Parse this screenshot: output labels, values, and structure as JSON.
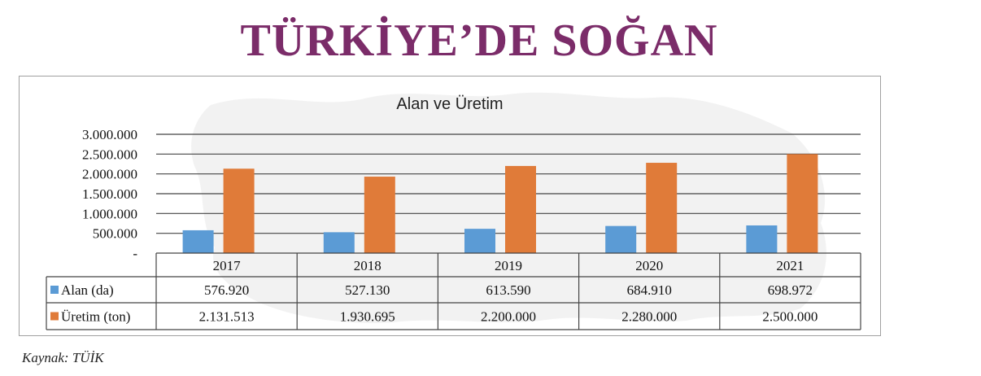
{
  "page": {
    "title": "TÜRKİYE’DE SOĞAN",
    "source": "Kaynak: TÜİK"
  },
  "colors": {
    "title": "#7b2c69",
    "alan": "#5b9bd5",
    "uretim": "#e07b39"
  },
  "chart_data": {
    "type": "bar",
    "title": "Alan ve Üretim",
    "categories": [
      "2017",
      "2018",
      "2019",
      "2020",
      "2021"
    ],
    "series": [
      {
        "name": "Alan (da)",
        "values": [
          576920,
          527130,
          613590,
          684910,
          698972
        ],
        "labels": [
          "576.920",
          "527.130",
          "613.590",
          "684.910",
          "698.972"
        ]
      },
      {
        "name": "Üretim (ton)",
        "values": [
          2131513,
          1930695,
          2200000,
          2280000,
          2500000
        ],
        "labels": [
          "2.131.513",
          "1.930.695",
          "2.200.000",
          "2.280.000",
          "2.500.000"
        ]
      }
    ],
    "ylim": [
      0,
      3000000
    ],
    "yticks": [
      0,
      500000,
      1000000,
      1500000,
      2000000,
      2500000,
      3000000
    ],
    "ytick_labels": [
      "-",
      "500.000",
      "1.000.000",
      "1.500.000",
      "2.000.000",
      "2.500.000",
      "3.000.000"
    ],
    "grid": true,
    "legend": "data-table",
    "data_table": true
  }
}
